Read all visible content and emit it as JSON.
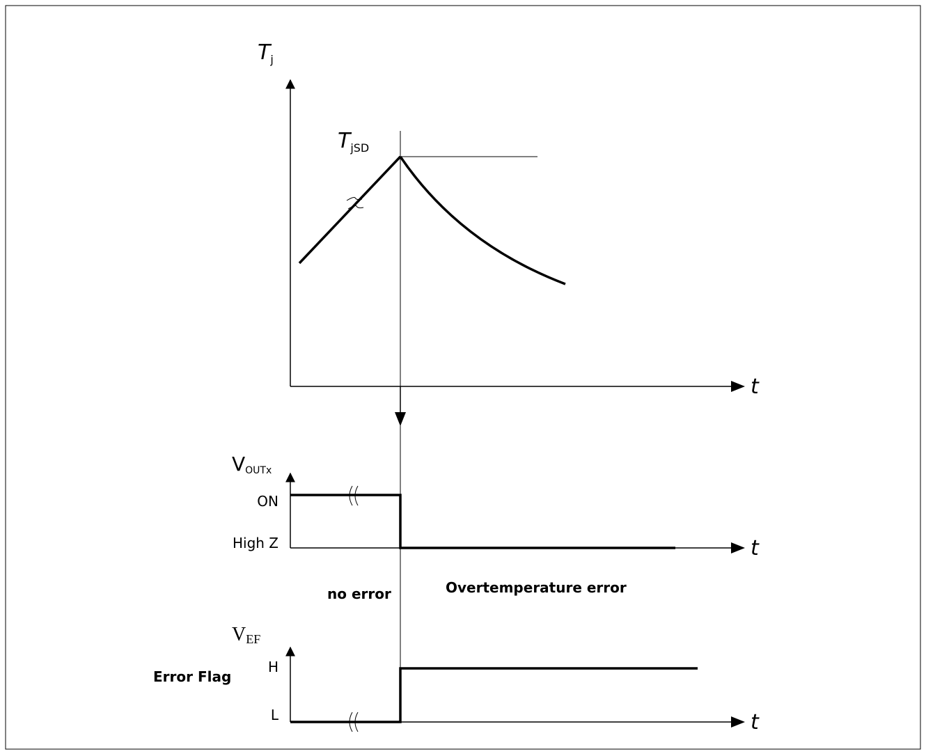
{
  "tj_axis": {
    "main": "T",
    "sub": "j"
  },
  "tjsd_label": {
    "main": "T",
    "sub": "jSD"
  },
  "vout_axis": {
    "main": "V",
    "sub": "OUTx"
  },
  "vout_levels": {
    "high": "ON",
    "low": "High Z"
  },
  "vef_axis": {
    "main": "V",
    "sub": "EF"
  },
  "vef_levels": {
    "high": "H",
    "low": "L"
  },
  "time_axis": "t",
  "states": {
    "before": "no error",
    "after": "Overtemperature error"
  },
  "signal_name": "Error Flag"
}
